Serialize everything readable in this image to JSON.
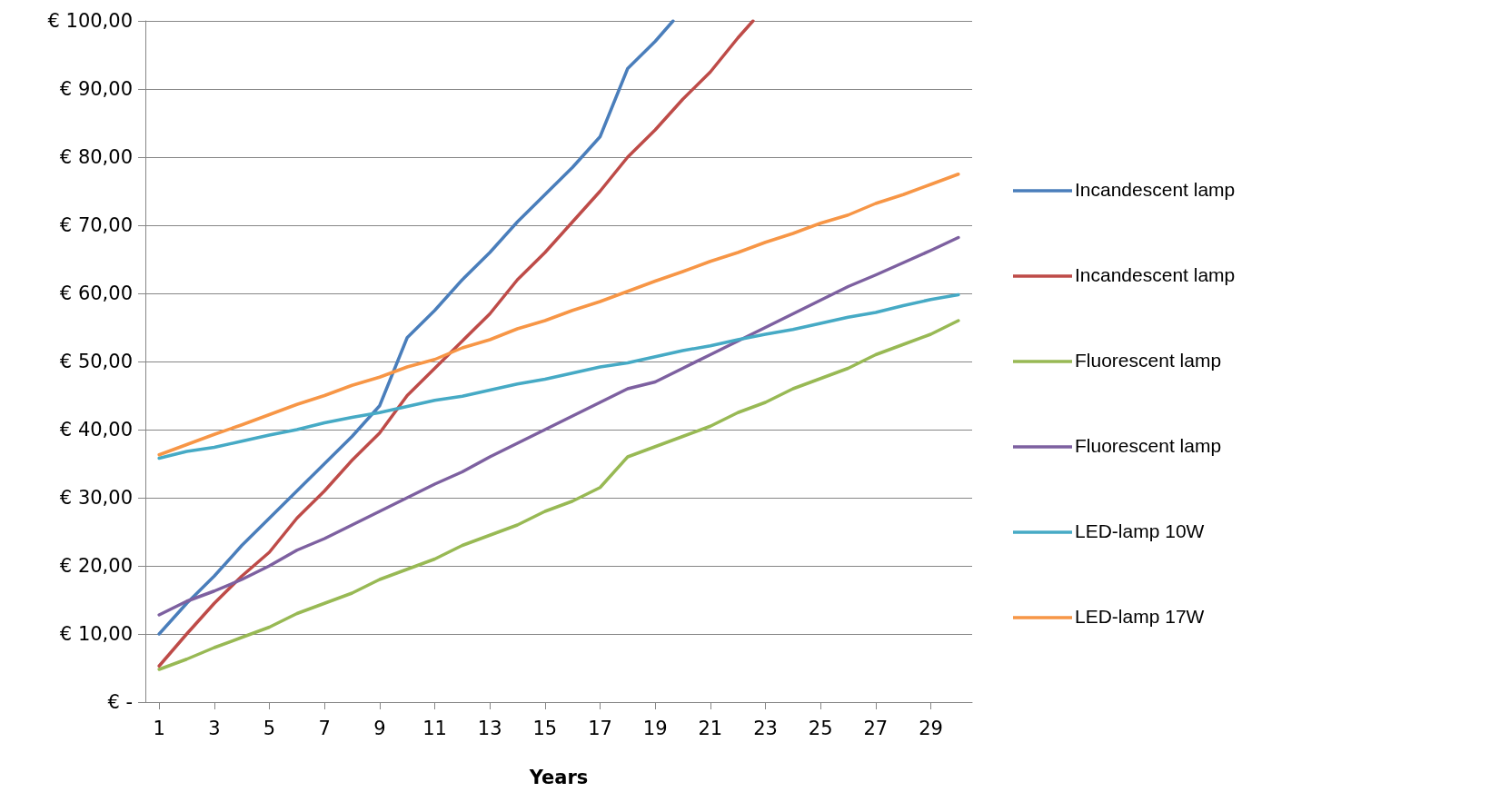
{
  "chart_data": {
    "type": "line",
    "xlabel": "Years",
    "xlim": [
      0.5,
      30.5
    ],
    "xticks": [
      1,
      3,
      5,
      7,
      9,
      11,
      13,
      15,
      17,
      19,
      21,
      23,
      25,
      27,
      29
    ],
    "ylim": [
      0,
      100
    ],
    "yticks": [
      {
        "value": 0,
        "label": "€ -"
      },
      {
        "value": 10,
        "label": "€ 10,00"
      },
      {
        "value": 20,
        "label": "€ 20,00"
      },
      {
        "value": 30,
        "label": "€ 30,00"
      },
      {
        "value": 40,
        "label": "€ 40,00"
      },
      {
        "value": 50,
        "label": "€ 50,00"
      },
      {
        "value": 60,
        "label": "€ 60,00"
      },
      {
        "value": 70,
        "label": "€ 70,00"
      },
      {
        "value": 80,
        "label": "€ 80,00"
      },
      {
        "value": 90,
        "label": "€ 90,00"
      },
      {
        "value": 100,
        "label": "€ 100,00"
      }
    ],
    "grid": "y",
    "legend": "right",
    "marker": "none",
    "line_style": "solid",
    "x": [
      1,
      2,
      3,
      4,
      5,
      6,
      7,
      8,
      9,
      10,
      11,
      12,
      13,
      14,
      15,
      16,
      17,
      18,
      19,
      20,
      21,
      22,
      23,
      24,
      25,
      26,
      27,
      28,
      29,
      30
    ],
    "series": [
      {
        "name": "Incandescent lamp",
        "color": "#4a7ebb",
        "x": [
          1,
          2,
          3,
          4,
          5,
          6,
          7,
          8,
          9,
          10,
          11,
          12,
          13,
          14,
          15,
          16,
          17,
          18,
          19,
          19.65
        ],
        "values": [
          10,
          14.5,
          18.5,
          23,
          27,
          31,
          35,
          39,
          43.5,
          53.5,
          57.5,
          62,
          66,
          70.5,
          74.5,
          78.5,
          83,
          93,
          97,
          100
        ]
      },
      {
        "name": "Incandescent lamp",
        "color": "#be4b48",
        "x": [
          1,
          2,
          3,
          4,
          5,
          6,
          7,
          8,
          9,
          10,
          11,
          12,
          13,
          14,
          15,
          16,
          17,
          18,
          19,
          20,
          21,
          22,
          22.55
        ],
        "values": [
          5.3,
          10,
          14.5,
          18.5,
          22,
          27,
          31,
          35.5,
          39.5,
          45,
          49,
          53,
          57,
          62,
          66,
          70.5,
          75,
          80,
          84,
          88.5,
          92.5,
          97.5,
          100
        ]
      },
      {
        "name": "Fluorescent lamp",
        "color": "#98b954",
        "values": [
          4.8,
          6.3,
          8,
          9.5,
          11,
          13,
          14.5,
          16,
          18,
          19.5,
          21,
          23,
          24.5,
          26,
          28,
          29.5,
          31.5,
          36,
          37.5,
          39,
          40.5,
          42.5,
          44,
          46,
          47.5,
          49,
          51,
          52.5,
          54,
          56
        ]
      },
      {
        "name": "Fluorescent lamp",
        "color": "#7d60a0",
        "values": [
          12.8,
          14.8,
          16.3,
          18,
          20,
          22.3,
          24,
          26,
          28,
          30,
          32,
          33.8,
          36,
          38,
          40,
          42,
          44,
          46,
          47,
          49,
          51,
          53,
          55,
          57,
          59,
          61,
          62.7,
          64.5,
          66.3,
          68.2
        ]
      },
      {
        "name": "LED-lamp 10W",
        "color": "#46aac5",
        "values": [
          35.8,
          36.8,
          37.4,
          38.3,
          39.2,
          40,
          41,
          41.8,
          42.5,
          43.4,
          44.3,
          44.9,
          45.8,
          46.7,
          47.4,
          48.3,
          49.2,
          49.8,
          50.7,
          51.6,
          52.3,
          53.2,
          54,
          54.7,
          55.6,
          56.5,
          57.2,
          58.2,
          59.1,
          59.8
        ]
      },
      {
        "name": "LED-lamp 17W",
        "color": "#f79646",
        "values": [
          36.3,
          37.8,
          39.3,
          40.7,
          42.2,
          43.7,
          45,
          46.5,
          47.7,
          49.2,
          50.3,
          52,
          53.2,
          54.8,
          56,
          57.5,
          58.8,
          60.3,
          61.8,
          63.2,
          64.7,
          66,
          67.5,
          68.8,
          70.3,
          71.5,
          73.2,
          74.5,
          76,
          77.5
        ]
      }
    ]
  }
}
